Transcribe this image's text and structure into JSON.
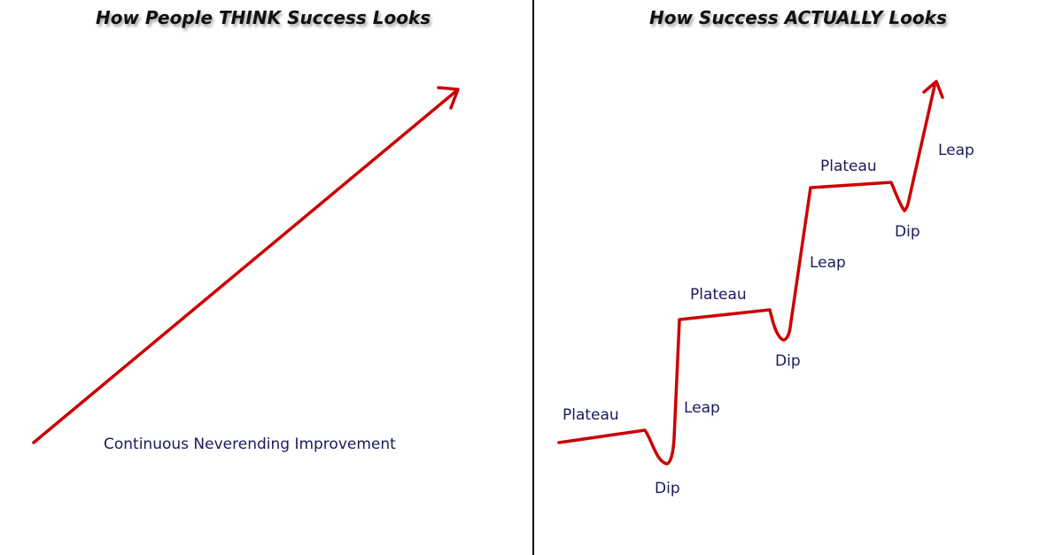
{
  "left_panel": {
    "title": "How People THINK Success Looks",
    "caption": "Continuous Neverending Improvement"
  },
  "right_panel": {
    "title": "How Success ACTUALLY Looks",
    "labels": {
      "plateau_1": "Plateau",
      "dip_1": "Dip",
      "leap_1": "Leap",
      "plateau_2": "Plateau",
      "dip_2": "Dip",
      "leap_2": "Leap",
      "plateau_3": "Plateau",
      "dip_3": "Dip",
      "leap_3": "Leap"
    }
  },
  "colors": {
    "line": "#cc0000",
    "label": "#1a1a5c",
    "title": "#111111",
    "divider": "#111111"
  }
}
